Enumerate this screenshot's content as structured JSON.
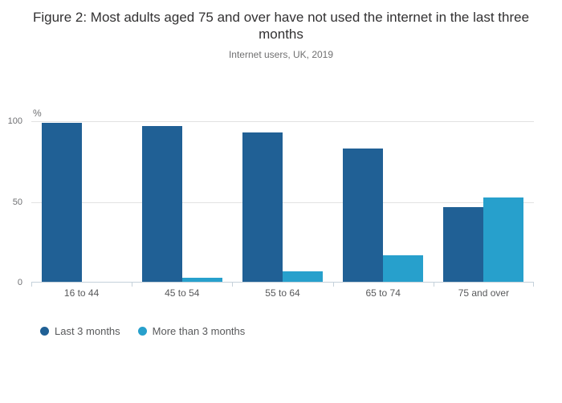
{
  "header": {
    "title": "Figure 2: Most adults aged 75 and over have not used the internet in the last three months",
    "subtitle": "Internet users, UK, 2019"
  },
  "chart_data": {
    "type": "bar",
    "categories": [
      "16 to 44",
      "45 to 54",
      "55 to 64",
      "65 to 74",
      "75 and over"
    ],
    "series": [
      {
        "name": "Last 3 months",
        "color": "#206095",
        "values": [
          99,
          97,
          93,
          83,
          47
        ]
      },
      {
        "name": "More than 3 months",
        "color": "#27A0CC",
        "values": [
          0,
          3,
          7,
          17,
          53
        ]
      }
    ],
    "ylabel": "%",
    "yticks": [
      0,
      50,
      100
    ],
    "ylim": [
      0,
      100
    ],
    "grid": true,
    "legend_position": "bottom-left"
  },
  "colors": {
    "bar_dark_blue": "#206095",
    "bar_light_blue": "#27A0CC",
    "gridline": "#e2e2e2",
    "axis_line": "#c5d1da",
    "title_text": "#323132",
    "muted_text": "#707071"
  }
}
